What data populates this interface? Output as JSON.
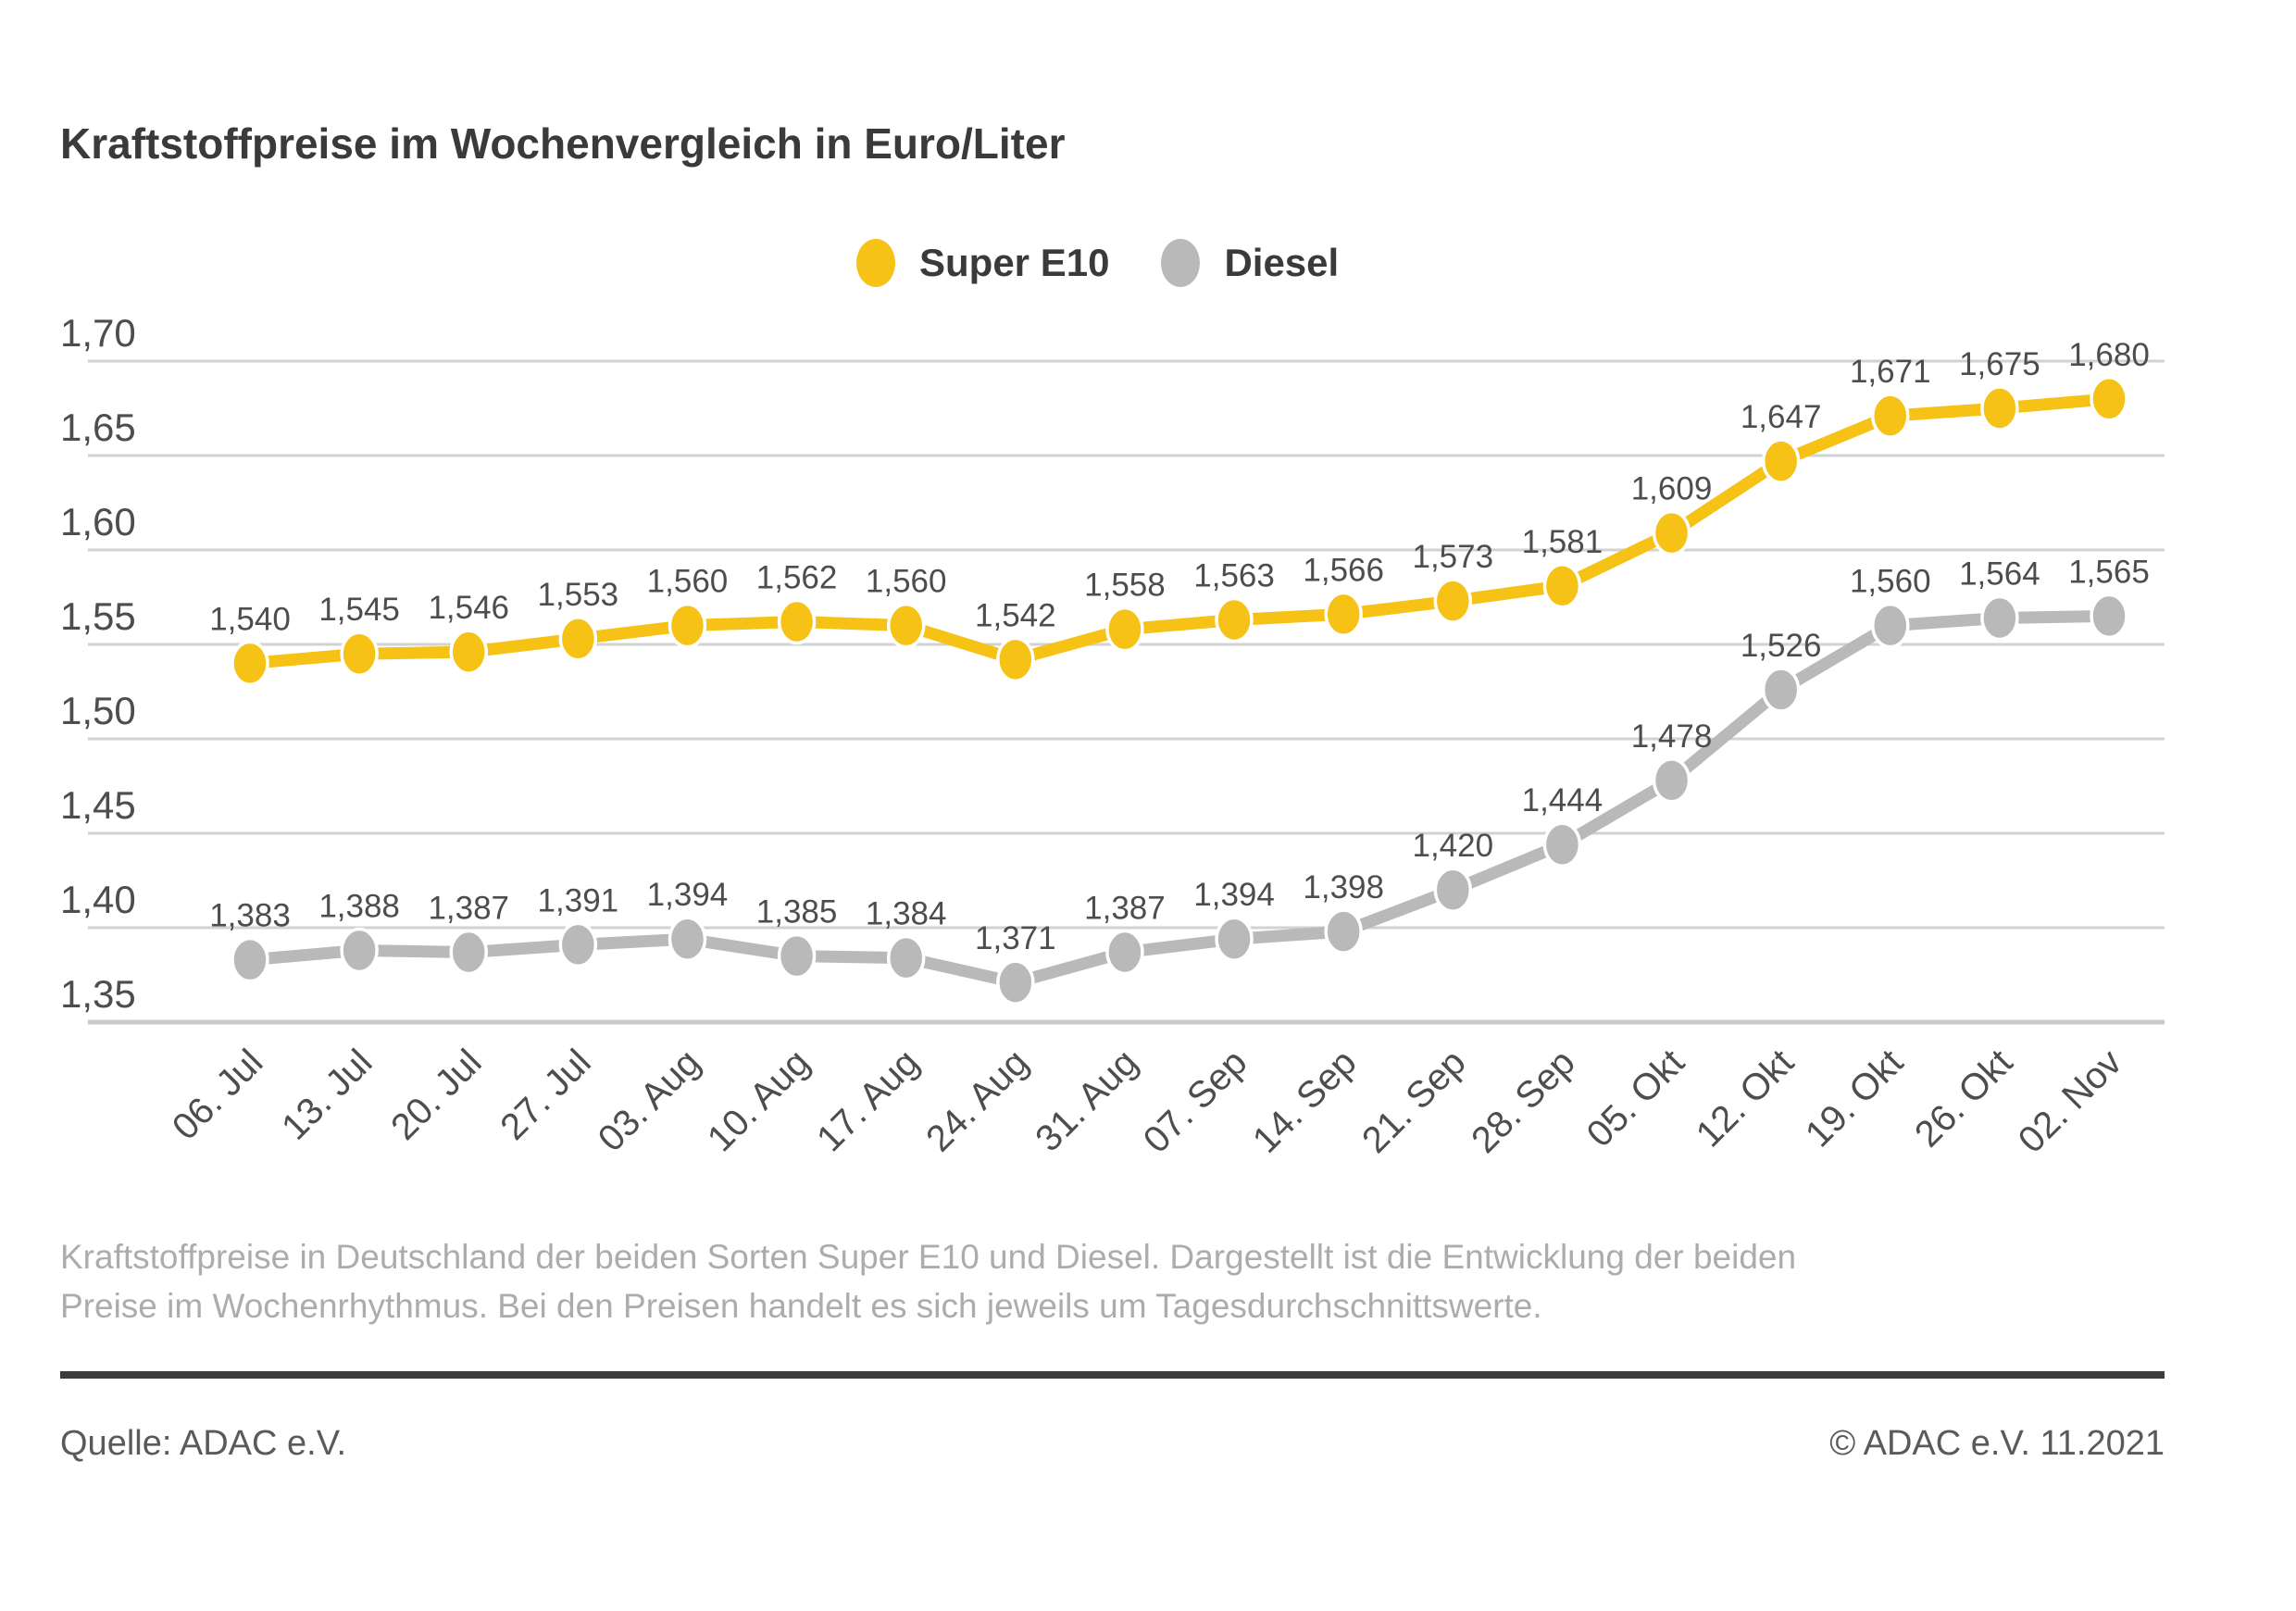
{
  "header": {
    "title": "Kraftstoffpreise im Wochenvergleich in Euro/Liter"
  },
  "legend": [
    {
      "label": "Super E10",
      "color": "#f6c216"
    },
    {
      "label": "Diesel",
      "color": "#b9b9b9"
    }
  ],
  "chart_data": {
    "type": "line",
    "title": "Kraftstoffpreise im Wochenvergleich in Euro/Liter",
    "xlabel": "",
    "ylabel": "Euro/Liter",
    "categories": [
      "06. Jul",
      "13. Jul",
      "20. Jul",
      "27. Jul",
      "03. Aug",
      "10. Aug",
      "17. Aug",
      "24. Aug",
      "31. Aug",
      "07. Sep",
      "14. Sep",
      "21. Sep",
      "28. Sep",
      "05. Okt",
      "12. Okt",
      "19. Okt",
      "26. Okt",
      "02. Nov"
    ],
    "series": [
      {
        "name": "Super E10",
        "color": "#f6c216",
        "values": [
          1.54,
          1.545,
          1.546,
          1.553,
          1.56,
          1.562,
          1.56,
          1.542,
          1.558,
          1.563,
          1.566,
          1.573,
          1.581,
          1.609,
          1.647,
          1.671,
          1.675,
          1.68
        ]
      },
      {
        "name": "Diesel",
        "color": "#b9b9b9",
        "values": [
          1.383,
          1.388,
          1.387,
          1.391,
          1.394,
          1.385,
          1.384,
          1.371,
          1.387,
          1.394,
          1.398,
          1.42,
          1.444,
          1.478,
          1.526,
          1.56,
          1.564,
          1.565
        ]
      }
    ],
    "ylim": [
      1.35,
      1.7
    ],
    "ytick_step": 0.05,
    "ytick_labels": [
      "1,70",
      "1,65",
      "1,60",
      "1,55",
      "1,50",
      "1,45",
      "1,40",
      "1,35"
    ],
    "grid": true,
    "legend_position": "top-center",
    "value_labels": true,
    "decimal_separator": ","
  },
  "caption": {
    "text": "Kraftstoffpreise in Deutschland der beiden Sorten Super E10 und Diesel. Dargestellt ist die Entwicklung der beiden Preise im Wochenrhythmus. Bei den Preisen handelt es sich jeweils um Tagesdurchschnittswerte."
  },
  "footer": {
    "source": "Quelle: ADAC e.V.",
    "copyright": "© ADAC e.V. 11.2021"
  },
  "colors": {
    "super_e10": "#f6c216",
    "diesel": "#b9b9b9",
    "grid_line": "#d2d2d2",
    "axis_line": "#c8c8c8",
    "tick_text": "#4d4d4d",
    "value_text": "#4d4d4d",
    "title_text": "#3a3a3a",
    "caption_text": "#acacac",
    "footer_rule": "#3c3c3c",
    "footer_text": "#5a5a5a"
  }
}
